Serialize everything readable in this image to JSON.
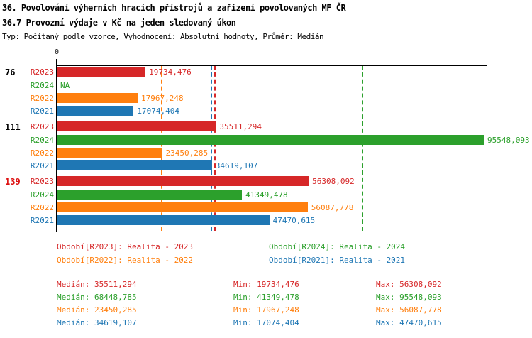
{
  "header": {
    "title_line1": "36. Povolování výherních hracích přístrojů a zařízení povolovaných MF ČR",
    "title_line2": "36.7 Provozní výdaje v Kč na jeden sledovaný úkon",
    "subtitle": "Typ: Počítaný podle vzorce, Vyhodnocení: Absolutní hodnoty, Průměr: Medián"
  },
  "chart_data": {
    "type": "bar",
    "orientation": "horizontal",
    "value_axis": {
      "zero_label": "0",
      "xlim": [
        0,
        96500
      ],
      "grid": false
    },
    "categories": [
      "76",
      "111",
      "139"
    ],
    "category_label_colors": [
      "#000000",
      "#000000",
      "#dd1111"
    ],
    "na_label": "NA",
    "series": [
      {
        "name": "R2023",
        "color": "#d62728",
        "values": [
          19734.476,
          35511.294,
          56308.092
        ],
        "value_labels": [
          "19734,476",
          "35511,294",
          "56308,092"
        ],
        "median": 35511.294
      },
      {
        "name": "R2024",
        "color": "#2ca02c",
        "values": [
          null,
          95548.093,
          41349.478
        ],
        "value_labels": [
          "NA",
          "95548,093",
          "41349,478"
        ],
        "median": 68448.785
      },
      {
        "name": "R2022",
        "color": "#ff7f0e",
        "values": [
          17967.248,
          23450.285,
          56087.778
        ],
        "value_labels": [
          "17967,248",
          "23450,285",
          "56087,778"
        ],
        "median": 23450.285
      },
      {
        "name": "R2021",
        "color": "#1f77b4",
        "values": [
          17074.404,
          34619.107,
          47470.615
        ],
        "value_labels": [
          "17074,404",
          "34619,107",
          "47470,615"
        ],
        "median": 34619.107
      }
    ],
    "median_lines": [
      {
        "series": "R2023",
        "value": 35511.294,
        "color": "#d62728"
      },
      {
        "series": "R2024",
        "value": 68448.785,
        "color": "#2ca02c"
      },
      {
        "series": "R2022",
        "value": 23450.285,
        "color": "#ff7f0e"
      },
      {
        "series": "R2021",
        "value": 34619.107,
        "color": "#1f77b4"
      }
    ]
  },
  "legend": {
    "items": [
      {
        "label": "Období[R2023]: Realita - 2023",
        "color": "#d62728"
      },
      {
        "label": "Období[R2024]: Realita - 2024",
        "color": "#2ca02c"
      },
      {
        "label": "Období[R2022]: Realita - 2022",
        "color": "#ff7f0e"
      },
      {
        "label": "Období[R2021]: Realita - 2021",
        "color": "#1f77b4"
      }
    ]
  },
  "stats": {
    "rows": [
      {
        "series": "R2023",
        "color": "#d62728",
        "median": "Medián: 35511,294",
        "min": "Min: 19734,476",
        "max": "Max: 56308,092"
      },
      {
        "series": "R2024",
        "color": "#2ca02c",
        "median": "Medián: 68448,785",
        "min": "Min: 41349,478",
        "max": "Max: 95548,093"
      },
      {
        "series": "R2022",
        "color": "#ff7f0e",
        "median": "Medián: 23450,285",
        "min": "Min: 17967,248",
        "max": "Max: 56087,778"
      },
      {
        "series": "R2021",
        "color": "#1f77b4",
        "median": "Medián: 34619,107",
        "min": "Min: 17074,404",
        "max": "Max: 47470,615"
      }
    ]
  }
}
